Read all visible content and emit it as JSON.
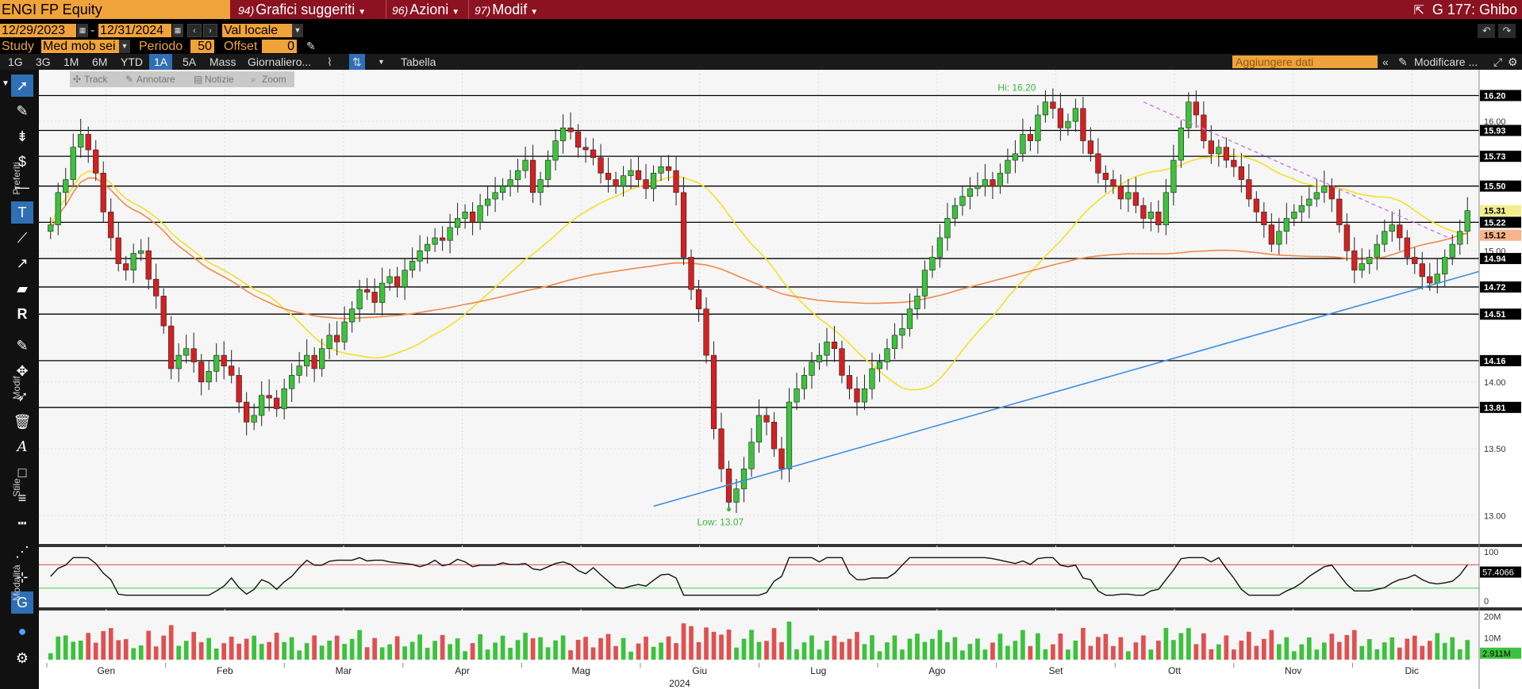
{
  "topbar": {
    "ticker": "ENGI FP Equity",
    "menu": [
      {
        "num": "94)",
        "label": "Grafici suggeriti"
      },
      {
        "num": "96)",
        "label": "Azioni"
      },
      {
        "num": "97)",
        "label": "Modif"
      }
    ],
    "right_text": "G 177: Ghibo"
  },
  "controls": {
    "start_date": "12/29/2023",
    "dash": "-",
    "end_date": "12/31/2024",
    "currency": "Val locale",
    "study_label": "Study",
    "study_value": "Med mob sei",
    "period_label": "Periodo",
    "period_value": "50",
    "offset_label": "Offset",
    "offset_value": "0"
  },
  "periodbar": {
    "periods": [
      "1G",
      "3G",
      "1M",
      "6M",
      "YTD",
      "1A",
      "5A",
      "Mass"
    ],
    "active": "1A",
    "frequency": "Giornaliero...",
    "table_label": "Tabella",
    "add_data_placeholder": "Aggiungere dati",
    "modify_label": "Modificare ..."
  },
  "chart_strip": {
    "items": [
      "Track",
      "Annotare",
      "Notizie",
      "Zoom"
    ]
  },
  "sidebar": {
    "labels": [
      "Preferiti",
      "Modif",
      "Stile",
      "Modalità"
    ]
  },
  "chart_data": {
    "type": "candlestick",
    "instrument": "ENGI FP Equity",
    "frequency": "daily",
    "year_label": "2024",
    "x_month_labels": [
      "Gen",
      "Feb",
      "Mar",
      "Apr",
      "Mag",
      "Giu",
      "Lug",
      "Ago",
      "Set",
      "Ott",
      "Nov",
      "Dic"
    ],
    "price_axis": {
      "range": [
        12.8,
        16.35
      ],
      "tick_labels": [
        "13.00",
        "13.50",
        "14.00",
        "15.00",
        "16.00"
      ],
      "level_labels": [
        "16.20",
        "15.93",
        "15.73",
        "15.50",
        "15.31",
        "15.22",
        "15.12",
        "14.94",
        "14.72",
        "14.51",
        "14.16",
        "13.81"
      ]
    },
    "horizontal_levels": [
      16.2,
      15.93,
      15.73,
      15.5,
      15.22,
      14.94,
      14.72,
      14.51,
      14.16,
      13.81
    ],
    "annotations": {
      "high": {
        "text": "Hi: 16.20",
        "value": 16.2
      },
      "low": {
        "text": "Low: 13.07",
        "value": 13.07
      }
    },
    "last_price": 15.31,
    "ma_50_last": 15.31,
    "ma_200_last": 15.12,
    "trend_support": {
      "from_month": "Giu",
      "from_value": 13.07,
      "to_month": "Dic",
      "to_value": 14.84
    },
    "trend_resistance": {
      "from_month": "Ott",
      "from_value": 16.15,
      "to_month": "Dic",
      "to_value": 15.05
    },
    "oscillator": {
      "axis_labels": [
        "100",
        "0"
      ],
      "last_value": "57.4066",
      "upper_band": 70,
      "lower_band": 30
    },
    "volume": {
      "axis_labels": [
        "20M",
        "10M"
      ],
      "last_value": "2.911M"
    },
    "closes": [
      15.2,
      15.45,
      15.55,
      15.8,
      15.9,
      15.78,
      15.6,
      15.3,
      15.1,
      14.9,
      14.85,
      14.98,
      15.0,
      14.78,
      14.65,
      14.42,
      14.1,
      14.2,
      14.25,
      14.15,
      14.0,
      14.08,
      14.2,
      14.12,
      14.05,
      13.85,
      13.7,
      13.75,
      13.9,
      13.88,
      13.8,
      13.95,
      14.05,
      14.12,
      14.2,
      14.1,
      14.25,
      14.35,
      14.3,
      14.45,
      14.55,
      14.7,
      14.68,
      14.6,
      14.75,
      14.8,
      14.72,
      14.85,
      14.92,
      15.0,
      15.05,
      15.1,
      15.08,
      15.18,
      15.25,
      15.3,
      15.22,
      15.35,
      15.4,
      15.45,
      15.5,
      15.55,
      15.62,
      15.7,
      15.45,
      15.55,
      15.7,
      15.85,
      15.95,
      15.92,
      15.8,
      15.78,
      15.72,
      15.6,
      15.55,
      15.5,
      15.58,
      15.62,
      15.55,
      15.48,
      15.6,
      15.65,
      15.62,
      15.45,
      14.95,
      14.7,
      14.55,
      14.2,
      13.65,
      13.35,
      13.1,
      13.2,
      13.35,
      13.55,
      13.75,
      13.7,
      13.5,
      13.35,
      13.85,
      13.95,
      14.05,
      14.15,
      14.2,
      14.3,
      14.25,
      14.05,
      13.95,
      13.85,
      13.95,
      14.1,
      14.15,
      14.25,
      14.35,
      14.4,
      14.55,
      14.65,
      14.85,
      14.95,
      15.1,
      15.25,
      15.35,
      15.42,
      15.48,
      15.5,
      15.55,
      15.5,
      15.6,
      15.7,
      15.75,
      15.9,
      15.85,
      16.05,
      16.15,
      16.1,
      15.95,
      16.0,
      16.1,
      15.85,
      15.75,
      15.6,
      15.55,
      15.5,
      15.4,
      15.45,
      15.35,
      15.25,
      15.3,
      15.2,
      15.45,
      15.7,
      15.95,
      16.15,
      16.05,
      15.85,
      15.75,
      15.8,
      15.7,
      15.65,
      15.55,
      15.4,
      15.3,
      15.2,
      15.05,
      15.15,
      15.25,
      15.3,
      15.35,
      15.4,
      15.45,
      15.5,
      15.4,
      15.2,
      15.0,
      14.85,
      14.9,
      14.95,
      15.05,
      15.15,
      15.2,
      15.1,
      14.95,
      14.9,
      14.8,
      14.75,
      14.82,
      14.95,
      15.05,
      15.15,
      15.31
    ]
  }
}
